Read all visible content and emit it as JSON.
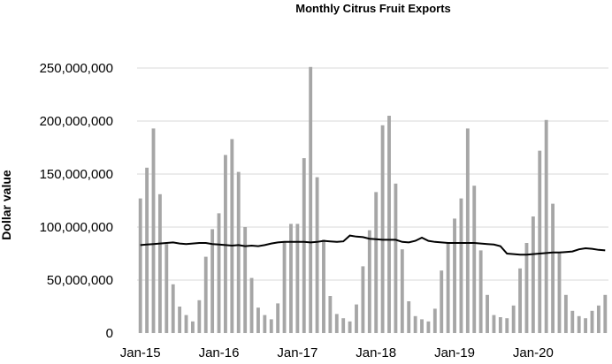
{
  "chart_data": {
    "type": "bar",
    "title": "Monthly Citrus Fruit Exports",
    "ylabel": "Dollar value",
    "xlabel": "",
    "ylim": [
      0,
      250000000
    ],
    "yticks": [
      0,
      50000000,
      100000000,
      150000000,
      200000000,
      250000000
    ],
    "ytick_labels": [
      "0",
      "50,000,000",
      "100,000,000",
      "150,000,000",
      "200,000,000",
      "250,000,000"
    ],
    "xtick_labels": [
      "Jan-15",
      "Jan-16",
      "Jan-17",
      "Jan-18",
      "Jan-19",
      "Jan-20"
    ],
    "xtick_months": [
      0,
      12,
      24,
      36,
      48,
      60
    ],
    "grid": true,
    "legend": "none",
    "bar_color": "#a6a6a6",
    "line_color": "#000000",
    "grid_color": "#d9d9d9",
    "series": [
      {
        "type": "bar",
        "values": [
          127000000,
          156000000,
          193000000,
          131000000,
          84000000,
          46000000,
          25000000,
          17000000,
          11000000,
          31000000,
          72000000,
          98000000,
          113000000,
          168000000,
          183000000,
          152000000,
          100000000,
          52000000,
          24000000,
          17000000,
          13000000,
          28000000,
          86000000,
          103000000,
          103000000,
          165000000,
          251000000,
          147000000,
          88000000,
          35000000,
          18000000,
          14000000,
          11000000,
          27000000,
          63000000,
          97000000,
          133000000,
          196000000,
          205000000,
          141000000,
          79000000,
          30000000,
          16000000,
          13000000,
          11000000,
          23000000,
          59000000,
          85000000,
          108000000,
          127000000,
          193000000,
          139000000,
          78000000,
          36000000,
          17000000,
          15000000,
          14000000,
          26000000,
          61000000,
          85000000,
          110000000,
          172000000,
          201000000,
          122000000,
          76000000,
          36000000,
          21000000,
          16000000,
          14000000,
          21000000,
          26000000,
          36000000
        ]
      },
      {
        "type": "line",
        "values": [
          83000000,
          83500000,
          84000000,
          84500000,
          85000000,
          85500000,
          84500000,
          84000000,
          84500000,
          85000000,
          85000000,
          84000000,
          83500000,
          83000000,
          82500000,
          83000000,
          82000000,
          82500000,
          82000000,
          83000000,
          84500000,
          85500000,
          86000000,
          86000000,
          86000000,
          86000000,
          85500000,
          86000000,
          87000000,
          86500000,
          86000000,
          86500000,
          92000000,
          91000000,
          90500000,
          89000000,
          88500000,
          88000000,
          88000000,
          88000000,
          86000000,
          85500000,
          87000000,
          90000000,
          87000000,
          86000000,
          85500000,
          85000000,
          85000000,
          85000000,
          85000000,
          85000000,
          84500000,
          84000000,
          83500000,
          82000000,
          75000000,
          74500000,
          74000000,
          74000000,
          74500000,
          75000000,
          75500000,
          76000000,
          76000000,
          76500000,
          77000000,
          79000000,
          80000000,
          79500000,
          78500000,
          78000000
        ]
      }
    ]
  }
}
